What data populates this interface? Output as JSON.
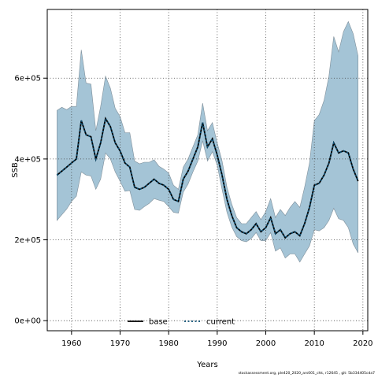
{
  "chart_data": {
    "type": "line",
    "xlabel": "Years",
    "ylabel": "SSB",
    "xlim": [
      1955,
      2021
    ],
    "ylim": [
      -25000,
      770000
    ],
    "xticks": [
      1960,
      1970,
      1980,
      1990,
      2000,
      2010,
      2020
    ],
    "yticks": [
      0,
      200000,
      400000,
      600000
    ],
    "ytick_labels": [
      "0e+00",
      "2e+05",
      "4e+05",
      "6e+05"
    ],
    "grid": true,
    "legend": {
      "placement": "bottom-center",
      "entries": [
        "base",
        "current"
      ]
    },
    "colors": {
      "band": "#a4c4d6",
      "band_edge": "#7f8f9a",
      "line": "#000000",
      "current": "#0d4f73"
    },
    "x": [
      1957,
      1958,
      1959,
      1960,
      1961,
      1962,
      1963,
      1964,
      1965,
      1966,
      1967,
      1968,
      1969,
      1970,
      1971,
      1972,
      1973,
      1974,
      1975,
      1976,
      1977,
      1978,
      1979,
      1980,
      1981,
      1982,
      1983,
      1984,
      1985,
      1986,
      1987,
      1988,
      1989,
      1990,
      1991,
      1992,
      1993,
      1994,
      1995,
      1996,
      1997,
      1998,
      1999,
      2000,
      2001,
      2002,
      2003,
      2004,
      2005,
      2006,
      2007,
      2008,
      2009,
      2010,
      2011,
      2012,
      2013,
      2014,
      2015,
      2016,
      2017,
      2018,
      2019
    ],
    "series": [
      {
        "name": "base",
        "style": "solid",
        "values": [
          360000,
          370000,
          380000,
          390000,
          400000,
          495000,
          460000,
          455000,
          400000,
          440000,
          500000,
          480000,
          440000,
          420000,
          390000,
          380000,
          330000,
          325000,
          330000,
          340000,
          350000,
          340000,
          335000,
          325000,
          300000,
          295000,
          350000,
          370000,
          400000,
          430000,
          490000,
          430000,
          450000,
          410000,
          360000,
          300000,
          260000,
          230000,
          220000,
          215000,
          225000,
          240000,
          220000,
          230000,
          255000,
          215000,
          225000,
          205000,
          215000,
          220000,
          210000,
          240000,
          280000,
          335000,
          340000,
          360000,
          390000,
          440000,
          415000,
          420000,
          415000,
          375000,
          345000
        ]
      },
      {
        "name": "current",
        "style": "dotted",
        "values": [
          360000,
          370000,
          380000,
          390000,
          400000,
          495000,
          460000,
          455000,
          400000,
          440000,
          500000,
          480000,
          440000,
          420000,
          390000,
          380000,
          330000,
          325000,
          330000,
          340000,
          350000,
          340000,
          335000,
          325000,
          300000,
          295000,
          350000,
          370000,
          400000,
          430000,
          490000,
          430000,
          450000,
          410000,
          360000,
          300000,
          260000,
          230000,
          220000,
          215000,
          225000,
          240000,
          220000,
          230000,
          255000,
          215000,
          225000,
          205000,
          215000,
          220000,
          210000,
          240000,
          280000,
          335000,
          340000,
          360000,
          390000,
          440000,
          415000,
          420000,
          415000,
          375000,
          345000
        ]
      }
    ],
    "interval": {
      "upper": [
        520000,
        528000,
        522000,
        530000,
        530000,
        670000,
        588000,
        585000,
        470000,
        530000,
        605000,
        575000,
        525000,
        505000,
        465000,
        465000,
        395000,
        388000,
        392000,
        392000,
        398000,
        382000,
        375000,
        365000,
        335000,
        325000,
        380000,
        400000,
        430000,
        460000,
        538000,
        470000,
        490000,
        440000,
        395000,
        330000,
        288000,
        255000,
        240000,
        240000,
        255000,
        270000,
        250000,
        270000,
        302000,
        255000,
        275000,
        260000,
        280000,
        295000,
        280000,
        330000,
        390000,
        495000,
        510000,
        545000,
        605000,
        703000,
        665000,
        715000,
        740000,
        710000,
        655000
      ],
      "lower": [
        248000,
        262000,
        276000,
        295000,
        308000,
        368000,
        360000,
        358000,
        325000,
        350000,
        415000,
        400000,
        368000,
        345000,
        320000,
        322000,
        275000,
        273000,
        282000,
        290000,
        302000,
        298000,
        295000,
        282000,
        268000,
        266000,
        318000,
        338000,
        368000,
        395000,
        445000,
        395000,
        418000,
        385000,
        325000,
        268000,
        232000,
        208000,
        198000,
        195000,
        203000,
        218000,
        198000,
        198000,
        218000,
        172000,
        180000,
        155000,
        165000,
        165000,
        145000,
        165000,
        185000,
        225000,
        222000,
        230000,
        248000,
        278000,
        252000,
        248000,
        230000,
        190000,
        168000
      ]
    }
  },
  "footnote": "stockassessment.org, ple420_2020_ars001_chk, r12645 , git: 5b334405cda7"
}
